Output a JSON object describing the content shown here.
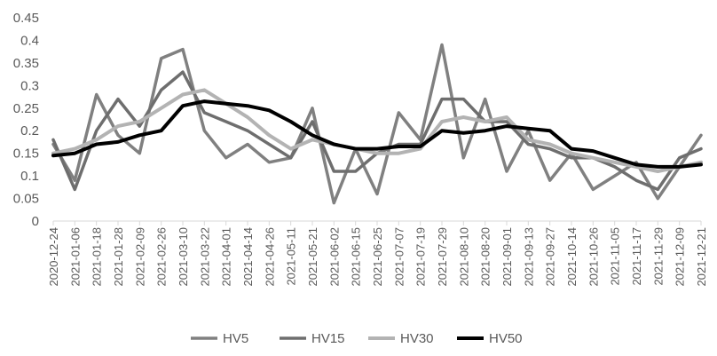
{
  "chart_data": {
    "type": "line",
    "title": "",
    "xlabel": "",
    "ylabel": "",
    "ylim": [
      0,
      0.45
    ],
    "yticks": [
      0,
      0.05,
      0.1,
      0.15,
      0.2,
      0.25,
      0.3,
      0.35,
      0.4,
      0.45
    ],
    "ytick_labels": [
      "0",
      "0.05",
      "0.1",
      "0.15",
      "0.2",
      "0.25",
      "0.3",
      "0.35",
      "0.4",
      "0.45"
    ],
    "grid": false,
    "legend_position": "bottom",
    "x": [
      "2020-12-24",
      "2021-01-06",
      "2021-01-18",
      "2021-01-28",
      "2021-02-09",
      "2021-02-26",
      "2021-03-10",
      "2021-03-22",
      "2021-04-01",
      "2021-04-14",
      "2021-04-26",
      "2021-05-11",
      "2021-05-21",
      "2021-06-02",
      "2021-06-15",
      "2021-06-25",
      "2021-07-07",
      "2021-07-19",
      "2021-07-29",
      "2021-08-10",
      "2021-08-20",
      "2021-09-01",
      "2021-09-13",
      "2021-09-27",
      "2021-10-14",
      "2021-10-26",
      "2021-11-05",
      "2021-11-17",
      "2021-11-29",
      "2021-12-09",
      "2021-12-21"
    ],
    "series": [
      {
        "name": "HV5",
        "color": "#808080",
        "width": 3.5,
        "values": [
          0.17,
          0.09,
          0.28,
          0.19,
          0.15,
          0.36,
          0.38,
          0.2,
          0.14,
          0.17,
          0.13,
          0.14,
          0.25,
          0.04,
          0.16,
          0.06,
          0.24,
          0.18,
          0.39,
          0.14,
          0.27,
          0.11,
          0.2,
          0.09,
          0.15,
          0.07,
          0.1,
          0.13,
          0.05,
          0.12,
          0.19
        ]
      },
      {
        "name": "HV15",
        "color": "#6e6e6e",
        "width": 3.5,
        "values": [
          0.18,
          0.07,
          0.2,
          0.27,
          0.21,
          0.29,
          0.33,
          0.24,
          0.22,
          0.2,
          0.17,
          0.14,
          0.22,
          0.11,
          0.11,
          0.15,
          0.17,
          0.17,
          0.27,
          0.27,
          0.22,
          0.22,
          0.17,
          0.16,
          0.14,
          0.14,
          0.12,
          0.09,
          0.07,
          0.14,
          0.16
        ]
      },
      {
        "name": "HV30",
        "color": "#b3b3b3",
        "width": 4,
        "values": [
          0.15,
          0.16,
          0.18,
          0.21,
          0.22,
          0.25,
          0.28,
          0.29,
          0.26,
          0.23,
          0.19,
          0.16,
          0.18,
          0.17,
          0.16,
          0.15,
          0.15,
          0.16,
          0.22,
          0.23,
          0.22,
          0.23,
          0.18,
          0.17,
          0.15,
          0.14,
          0.13,
          0.12,
          0.11,
          0.12,
          0.13
        ]
      },
      {
        "name": "HV50",
        "color": "#000000",
        "width": 4,
        "values": [
          0.145,
          0.15,
          0.17,
          0.175,
          0.19,
          0.2,
          0.255,
          0.265,
          0.26,
          0.255,
          0.245,
          0.22,
          0.19,
          0.17,
          0.16,
          0.16,
          0.165,
          0.165,
          0.2,
          0.195,
          0.2,
          0.21,
          0.205,
          0.2,
          0.16,
          0.155,
          0.14,
          0.125,
          0.12,
          0.12,
          0.125
        ]
      }
    ]
  }
}
